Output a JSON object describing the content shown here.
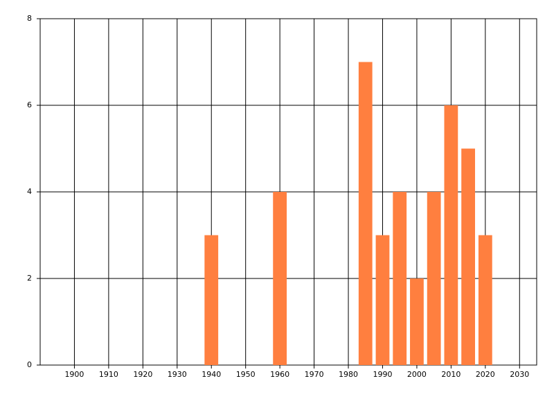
{
  "chart_data": {
    "type": "bar",
    "x": [
      1940,
      1960,
      1985,
      1990,
      1995,
      2000,
      2005,
      2010,
      2015,
      2020
    ],
    "values": [
      3,
      4,
      7,
      3,
      4,
      2,
      4,
      6,
      5,
      3
    ],
    "color": "#ff7f3f",
    "xlim": [
      1890,
      2035
    ],
    "xticks": [
      1900,
      1910,
      1920,
      1930,
      1940,
      1950,
      1960,
      1970,
      1980,
      1990,
      2000,
      2010,
      2020,
      2030
    ],
    "ylim": [
      0,
      8
    ],
    "yticks": [
      0,
      2,
      4,
      6,
      8
    ],
    "grid": true
  }
}
